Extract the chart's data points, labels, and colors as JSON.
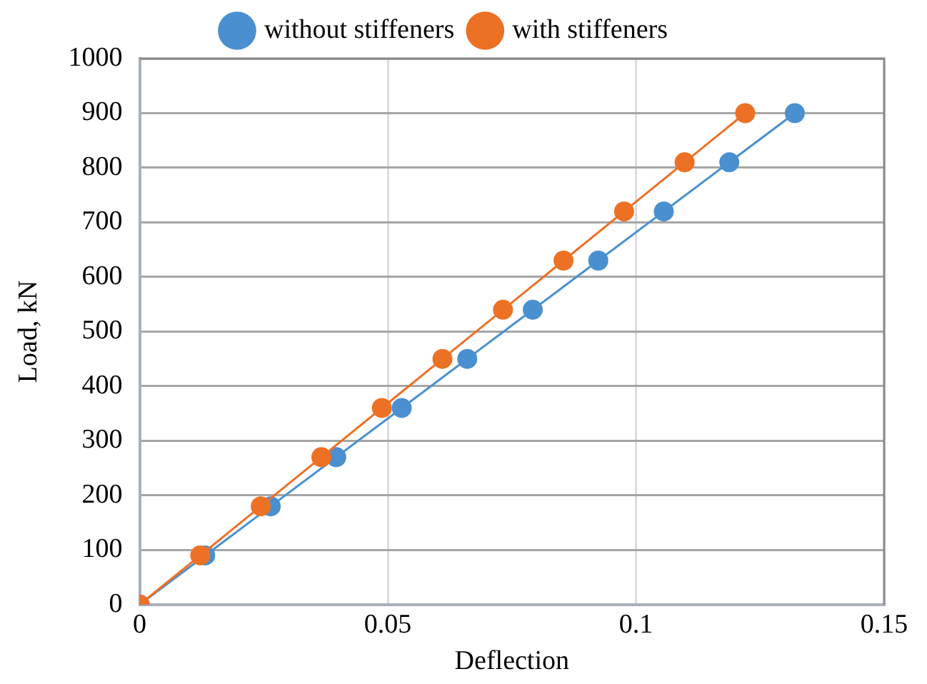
{
  "chart_data": {
    "type": "line",
    "xlabel": "Deflection",
    "ylabel": "Load, kN",
    "xlim": [
      0,
      0.15
    ],
    "xticks": [
      0,
      0.05,
      0.1,
      0.15
    ],
    "ylim": [
      0,
      1000
    ],
    "yticks": [
      0,
      100,
      200,
      300,
      400,
      500,
      600,
      700,
      800,
      900,
      1000
    ],
    "grid": true,
    "legend": "top",
    "marker": "circle",
    "series": [
      {
        "name": "without stiffeners",
        "color": "#4a90d0",
        "x": [
          0,
          0.0132,
          0.0264,
          0.0396,
          0.0528,
          0.066,
          0.0792,
          0.0924,
          0.1056,
          0.1188,
          0.132
        ],
        "values": [
          0,
          90,
          180,
          270,
          360,
          450,
          540,
          630,
          720,
          810,
          900
        ]
      },
      {
        "name": "with stiffeners",
        "color": "#ed7125",
        "x": [
          0,
          0.0122,
          0.0244,
          0.0366,
          0.0488,
          0.061,
          0.0732,
          0.0854,
          0.0976,
          0.1098,
          0.122
        ],
        "values": [
          0,
          90,
          180,
          270,
          360,
          450,
          540,
          630,
          720,
          810,
          900
        ]
      }
    ]
  }
}
